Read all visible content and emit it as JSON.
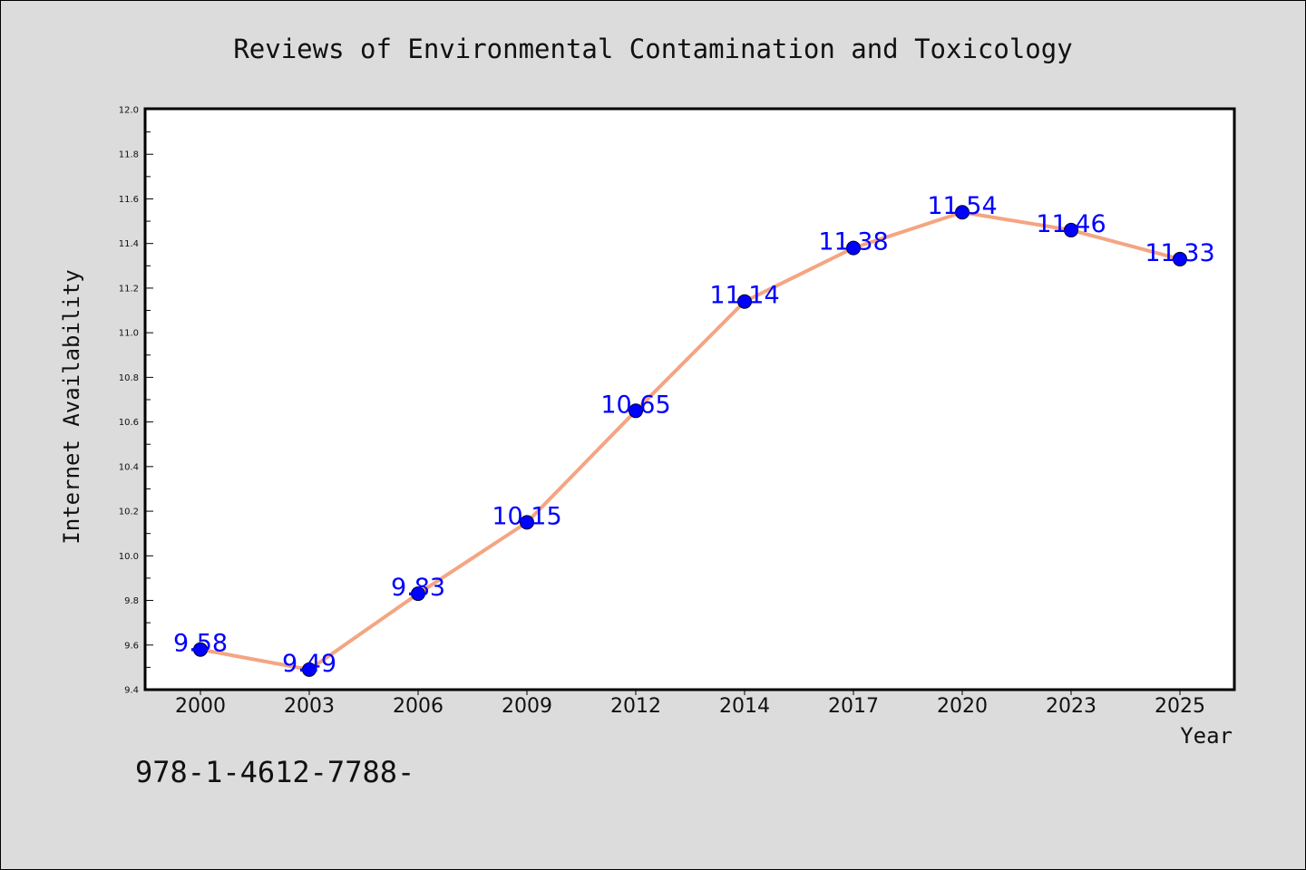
{
  "isbn_text": "978-1-4612-7788-",
  "colors": {
    "background": "#dcdcdc",
    "plot_area": "#ffffff",
    "line": "#f4a582",
    "marker": "#0000ff",
    "label": "#0000ff"
  },
  "chart_data": {
    "type": "line",
    "title": "Reviews of Environmental Contamination and Toxicology",
    "xlabel": "Year",
    "ylabel": "Internet Availability",
    "categories": [
      "2000",
      "2003",
      "2006",
      "2009",
      "2012",
      "2014",
      "2017",
      "2020",
      "2023",
      "2025"
    ],
    "series": [
      {
        "values": [
          9.58,
          9.49,
          9.83,
          10.15,
          10.65,
          11.14,
          11.38,
          11.54,
          11.46,
          11.33
        ],
        "labels": [
          "9.58",
          "9.49",
          "9.83",
          "10.15",
          "10.65",
          "11.14",
          "11.38",
          "11.54",
          "11.46",
          "11.33"
        ]
      }
    ],
    "ylim": [
      9.4,
      12.0
    ],
    "yticks": [
      "9.4",
      "9.6",
      "9.8",
      "10.0",
      "10.2",
      "10.4",
      "10.6",
      "10.8",
      "11.0",
      "11.2",
      "11.4",
      "11.6",
      "11.8",
      "12.0"
    ],
    "grid": false,
    "legend": "none",
    "data_labels": true
  }
}
